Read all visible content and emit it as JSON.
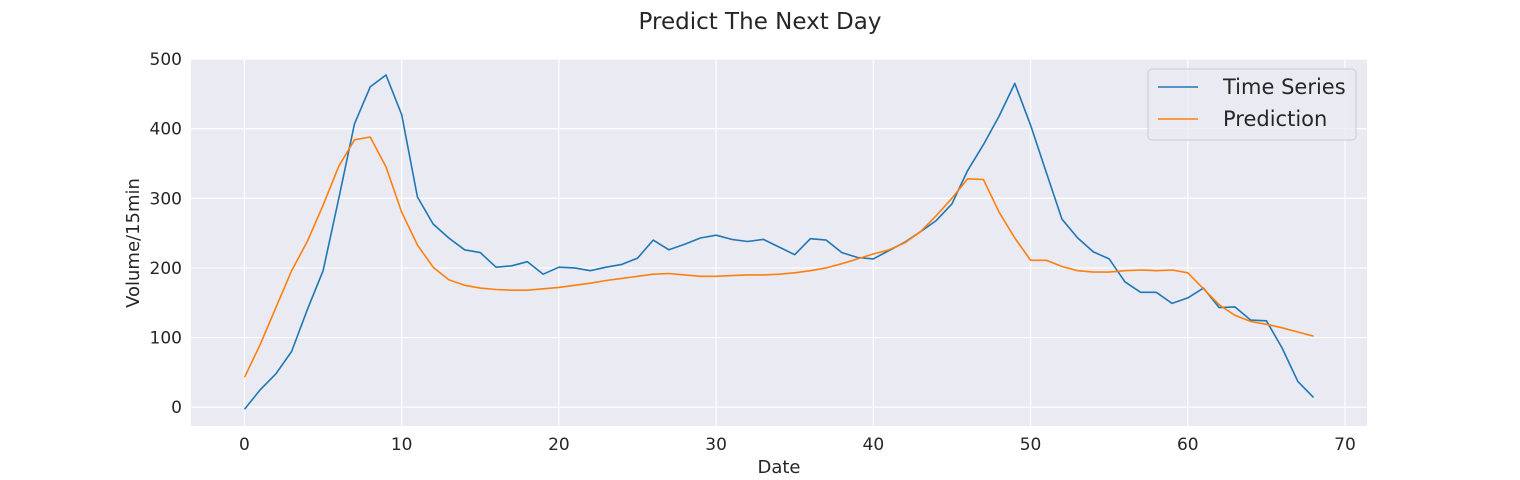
{
  "chart_data": {
    "type": "line",
    "title": "Predict The Next Day",
    "xlabel": "Date",
    "ylabel": "Volume/15min",
    "xlim": [
      -3.4,
      71.4
    ],
    "ylim": [
      -27,
      500
    ],
    "xticks": [
      0,
      10,
      20,
      30,
      40,
      50,
      60,
      70
    ],
    "yticks": [
      0,
      100,
      200,
      300,
      400,
      500
    ],
    "grid": true,
    "legend_position": "top-right",
    "background_color": "#eaeaf2",
    "grid_color": "#ffffff",
    "series": [
      {
        "name": "Time Series",
        "color": "#1f77b4",
        "x": [
          0,
          1,
          2,
          3,
          4,
          5,
          6,
          7,
          8,
          9,
          10,
          11,
          12,
          13,
          14,
          15,
          16,
          17,
          18,
          19,
          20,
          21,
          22,
          23,
          24,
          25,
          26,
          27,
          28,
          29,
          30,
          31,
          32,
          33,
          34,
          35,
          36,
          37,
          38,
          39,
          40,
          41,
          42,
          43,
          44,
          45,
          46,
          47,
          48,
          49,
          50,
          51,
          52,
          53,
          54,
          55,
          56,
          57,
          58,
          59,
          60,
          61,
          62,
          63,
          64,
          65,
          66,
          67,
          68
        ],
        "values": [
          -3,
          25,
          48,
          80,
          140,
          196,
          300,
          407,
          460,
          477,
          420,
          302,
          263,
          243,
          226,
          222,
          201,
          203,
          209,
          191,
          201,
          200,
          196,
          201,
          205,
          214,
          240,
          226,
          234,
          243,
          247,
          241,
          238,
          241,
          230,
          219,
          242,
          240,
          222,
          215,
          213,
          225,
          237,
          252,
          268,
          292,
          340,
          377,
          418,
          465,
          405,
          337,
          270,
          243,
          223,
          213,
          180,
          165,
          165,
          149,
          157,
          171,
          143,
          144,
          125,
          124,
          85,
          37,
          14
        ]
      },
      {
        "name": "Prediction",
        "color": "#ff7f0e",
        "x": [
          0,
          1,
          2,
          3,
          4,
          5,
          6,
          7,
          8,
          9,
          10,
          11,
          12,
          13,
          14,
          15,
          16,
          17,
          18,
          19,
          20,
          21,
          22,
          23,
          24,
          25,
          26,
          27,
          28,
          29,
          30,
          31,
          32,
          33,
          34,
          35,
          36,
          37,
          38,
          39,
          40,
          41,
          42,
          43,
          44,
          45,
          46,
          47,
          48,
          49,
          50,
          51,
          52,
          53,
          54,
          55,
          56,
          57,
          58,
          59,
          60,
          61,
          62,
          63,
          64,
          65,
          66,
          67,
          68
        ],
        "values": [
          43,
          90,
          143,
          196,
          238,
          290,
          346,
          384,
          388,
          345,
          280,
          233,
          201,
          183,
          175,
          171,
          169,
          168,
          168,
          170,
          172,
          175,
          178,
          182,
          185,
          188,
          191,
          192,
          190,
          188,
          188,
          189,
          190,
          190,
          191,
          193,
          196,
          200,
          206,
          213,
          220,
          226,
          236,
          252,
          275,
          300,
          328,
          327,
          280,
          243,
          211,
          211,
          202,
          196,
          194,
          194,
          196,
          197,
          196,
          197,
          193,
          170,
          147,
          132,
          123,
          119,
          114,
          108,
          102
        ]
      }
    ]
  }
}
